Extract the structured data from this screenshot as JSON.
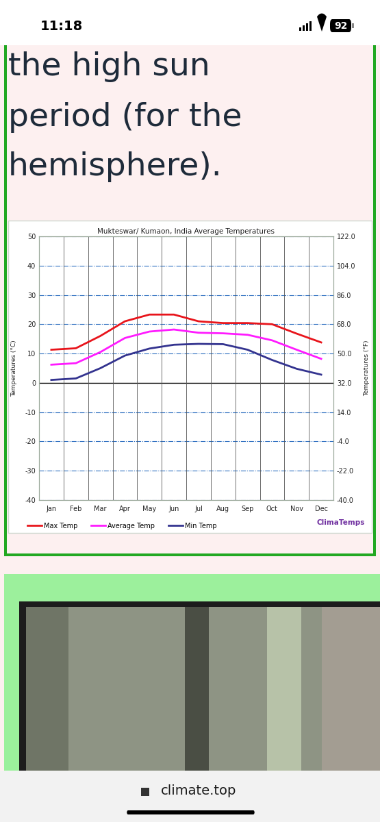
{
  "status_bar": {
    "time": "11:18",
    "battery": "92"
  },
  "heading": [
    "the high sun",
    "period (for the",
    "hemisphere)."
  ],
  "chart_data": {
    "type": "line",
    "title": "Mukteswar/ Kumaon, India Average Temperatures",
    "y_label": "Temperatures (°C)",
    "y2_label": "Temperatures (°F)",
    "categories": [
      "Jan",
      "Feb",
      "Mar",
      "Apr",
      "May",
      "Jun",
      "Jul",
      "Aug",
      "Sep",
      "Oct",
      "Nov",
      "Dec"
    ],
    "series": [
      {
        "name": "Max Temp",
        "color": "#e8141b",
        "values": [
          11.3,
          11.8,
          16.0,
          21.0,
          23.3,
          23.3,
          21.0,
          20.4,
          20.4,
          20.0,
          16.8,
          13.8
        ]
      },
      {
        "name": "Average Temp",
        "color": "#ff1aff",
        "values": [
          6.2,
          6.7,
          10.5,
          15.3,
          17.5,
          18.2,
          17.1,
          16.9,
          16.4,
          14.5,
          11.3,
          8.2
        ]
      },
      {
        "name": "Min Temp",
        "color": "#33338f",
        "values": [
          1.0,
          1.5,
          5.0,
          9.3,
          11.7,
          13.0,
          13.3,
          13.2,
          11.3,
          7.8,
          4.8,
          2.8
        ]
      }
    ],
    "ylim": [
      -40,
      50
    ],
    "yticks": [
      -40,
      -30,
      -20,
      -10,
      0,
      10,
      20,
      30,
      40,
      50
    ],
    "y2lim": [
      -40,
      122
    ],
    "y2ticks": [
      {
        "value": -40,
        "label": "-40.0"
      },
      {
        "value": -22,
        "label": "-22.0"
      },
      {
        "value": -4,
        "label": "-4.0"
      },
      {
        "value": 14,
        "label": "14.0"
      },
      {
        "value": 32,
        "label": "32.0"
      },
      {
        "value": 50,
        "label": "50.0"
      },
      {
        "value": 68,
        "label": "68.0"
      },
      {
        "value": 86,
        "label": "86.0"
      },
      {
        "value": 104,
        "label": "104.0"
      },
      {
        "value": 122,
        "label": "122.0"
      }
    ],
    "grid": true,
    "legend": "upper left",
    "source": "ClimaTemps"
  },
  "url": "climate.top"
}
